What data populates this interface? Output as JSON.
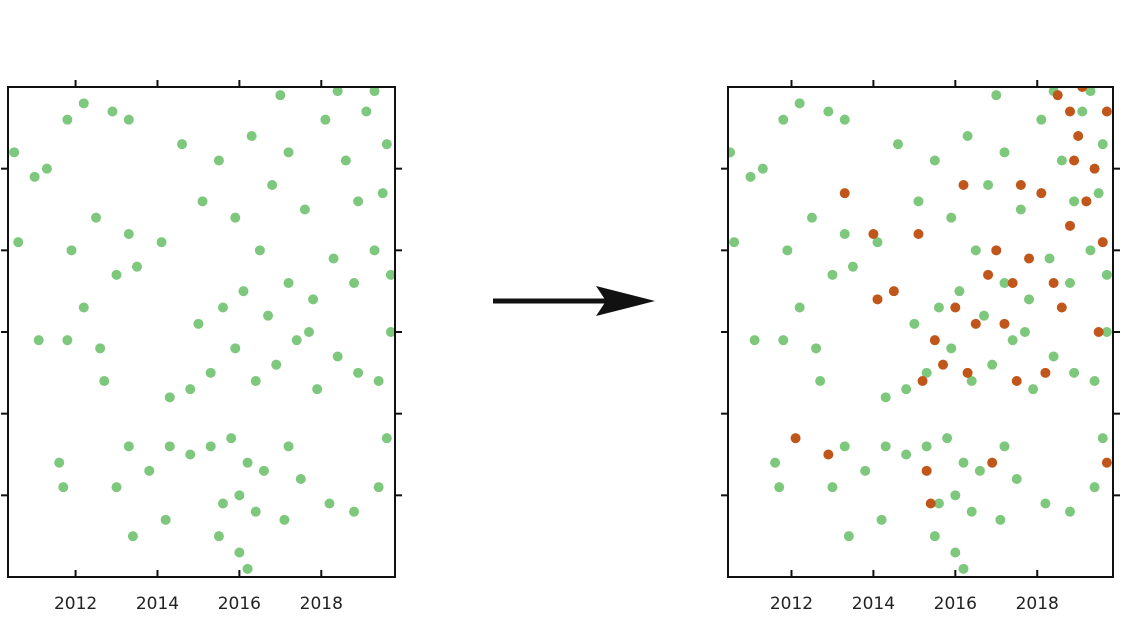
{
  "chart_data": [
    {
      "type": "scatter",
      "xlim": [
        2010.35,
        2019.8
      ],
      "xticks": [
        2012,
        2014,
        2016,
        2018
      ],
      "ylim": [
        0,
        6
      ],
      "yticks": [
        1,
        2,
        3,
        4,
        5
      ],
      "series": [
        {
          "color": "#7dc87d",
          "x": [
            2010.5,
            2010.6,
            2011.0,
            2011.3,
            2011.8,
            2012.2,
            2012.9,
            2013.3,
            2012.5,
            2011.9,
            2013.0,
            2013.5,
            2011.1,
            2011.8,
            2012.6,
            2013.3,
            2012.7,
            2011.6,
            2011.7,
            2013.3,
            2013.8,
            2014.3,
            2013.4,
            2014.2,
            2014.8,
            2015.3,
            2015.8,
            2016.2,
            2016.0,
            2015.6,
            2016.4,
            2016.6,
            2017.2,
            2017.5,
            2017.1,
            2016.0,
            2016.2,
            2015.5,
            2018.2,
            2018.8,
            2019.4,
            2019.6,
            2014.3,
            2014.8,
            2015.3,
            2015.9,
            2016.4,
            2016.9,
            2017.4,
            2017.9,
            2018.4,
            2018.9,
            2019.4,
            2019.7,
            2015.0,
            2015.6,
            2016.1,
            2016.7,
            2017.2,
            2017.8,
            2018.3,
            2018.8,
            2019.3,
            2019.7,
            2015.1,
            2015.5,
            2015.9,
            2016.3,
            2016.8,
            2017.2,
            2017.6,
            2018.1,
            2018.6,
            2019.1,
            2019.6,
            2018.9,
            2019.5,
            2017.0,
            2018.4,
            2019.3,
            2014.6,
            2014.1,
            2013.0,
            2012.2,
            2016.5,
            2017.7
          ],
          "values": [
            5.2,
            4.1,
            4.9,
            5.0,
            5.6,
            5.8,
            5.7,
            5.6,
            4.4,
            4.0,
            3.7,
            3.8,
            2.9,
            2.9,
            2.8,
            4.2,
            2.4,
            1.4,
            1.1,
            1.6,
            1.3,
            1.6,
            0.5,
            0.7,
            1.5,
            1.6,
            1.7,
            1.4,
            1.0,
            0.9,
            0.8,
            1.3,
            1.6,
            1.2,
            0.7,
            0.3,
            0.1,
            0.5,
            0.9,
            0.8,
            1.1,
            1.7,
            2.2,
            2.3,
            2.5,
            2.8,
            2.4,
            2.6,
            2.9,
            2.3,
            2.7,
            2.5,
            2.4,
            3.0,
            3.1,
            3.3,
            3.5,
            3.2,
            3.6,
            3.4,
            3.9,
            3.6,
            4.0,
            3.7,
            4.6,
            5.1,
            4.4,
            5.4,
            4.8,
            5.2,
            4.5,
            5.6,
            5.1,
            5.7,
            5.3,
            4.6,
            4.7,
            5.9,
            5.95,
            5.95,
            5.3,
            4.1,
            1.1,
            3.3,
            4.0,
            3.0
          ]
        }
      ]
    },
    {
      "type": "scatter",
      "xlim": [
        2010.45,
        2019.85
      ],
      "xticks": [
        2012,
        2014,
        2016,
        2018
      ],
      "ylim": [
        0,
        6
      ],
      "yticks": [
        1,
        2,
        3,
        4,
        5
      ],
      "series": [
        {
          "color": "#7dc87d",
          "x": [
            2010.5,
            2010.6,
            2011.0,
            2011.3,
            2011.8,
            2012.2,
            2012.9,
            2013.3,
            2012.5,
            2011.9,
            2013.0,
            2013.5,
            2011.1,
            2011.8,
            2012.6,
            2013.3,
            2012.7,
            2011.6,
            2011.7,
            2013.3,
            2013.8,
            2014.3,
            2013.4,
            2014.2,
            2014.8,
            2015.3,
            2015.8,
            2016.2,
            2016.0,
            2015.6,
            2016.4,
            2016.6,
            2017.2,
            2017.5,
            2017.1,
            2016.0,
            2016.2,
            2015.5,
            2018.2,
            2018.8,
            2019.4,
            2019.6,
            2014.3,
            2014.8,
            2015.3,
            2015.9,
            2016.4,
            2016.9,
            2017.4,
            2017.9,
            2018.4,
            2018.9,
            2019.4,
            2019.7,
            2015.0,
            2015.6,
            2016.1,
            2016.7,
            2017.2,
            2017.8,
            2018.3,
            2018.8,
            2019.3,
            2019.7,
            2015.1,
            2015.5,
            2015.9,
            2016.3,
            2016.8,
            2017.2,
            2017.6,
            2018.1,
            2018.6,
            2019.1,
            2019.6,
            2018.9,
            2019.5,
            2017.0,
            2018.4,
            2019.3,
            2014.6,
            2014.1,
            2013.0,
            2012.2,
            2016.5,
            2017.7
          ],
          "values": [
            5.2,
            4.1,
            4.9,
            5.0,
            5.6,
            5.8,
            5.7,
            5.6,
            4.4,
            4.0,
            3.7,
            3.8,
            2.9,
            2.9,
            2.8,
            4.2,
            2.4,
            1.4,
            1.1,
            1.6,
            1.3,
            1.6,
            0.5,
            0.7,
            1.5,
            1.6,
            1.7,
            1.4,
            1.0,
            0.9,
            0.8,
            1.3,
            1.6,
            1.2,
            0.7,
            0.3,
            0.1,
            0.5,
            0.9,
            0.8,
            1.1,
            1.7,
            2.2,
            2.3,
            2.5,
            2.8,
            2.4,
            2.6,
            2.9,
            2.3,
            2.7,
            2.5,
            2.4,
            3.0,
            3.1,
            3.3,
            3.5,
            3.2,
            3.6,
            3.4,
            3.9,
            3.6,
            4.0,
            3.7,
            4.6,
            5.1,
            4.4,
            5.4,
            4.8,
            5.2,
            4.5,
            5.6,
            5.1,
            5.7,
            5.3,
            4.6,
            4.7,
            5.9,
            5.95,
            5.95,
            5.3,
            4.1,
            1.1,
            3.3,
            4.0,
            3.0
          ]
        },
        {
          "color": "#c0561a",
          "x": [
            2012.1,
            2012.9,
            2013.3,
            2014.0,
            2014.1,
            2014.5,
            2015.1,
            2015.2,
            2015.5,
            2015.7,
            2015.3,
            2015.4,
            2016.0,
            2016.3,
            2016.5,
            2016.8,
            2017.0,
            2017.2,
            2017.4,
            2017.5,
            2017.6,
            2017.8,
            2018.2,
            2018.4,
            2018.6,
            2018.8,
            2018.9,
            2019.0,
            2019.2,
            2019.4,
            2019.6,
            2019.7,
            2019.5,
            2019.7,
            2018.5,
            2018.8,
            2019.1,
            2016.9,
            2016.2,
            2018.1
          ],
          "values": [
            1.7,
            1.5,
            4.7,
            4.2,
            3.4,
            3.5,
            4.2,
            2.4,
            2.9,
            2.6,
            1.3,
            0.9,
            3.3,
            2.5,
            3.1,
            3.7,
            4.0,
            3.1,
            3.6,
            2.4,
            4.8,
            3.9,
            2.5,
            3.6,
            3.3,
            4.3,
            5.1,
            5.4,
            4.6,
            5.0,
            4.1,
            5.7,
            3.0,
            1.4,
            5.9,
            5.7,
            6.0,
            1.4,
            4.8,
            4.7
          ]
        }
      ]
    }
  ]
}
